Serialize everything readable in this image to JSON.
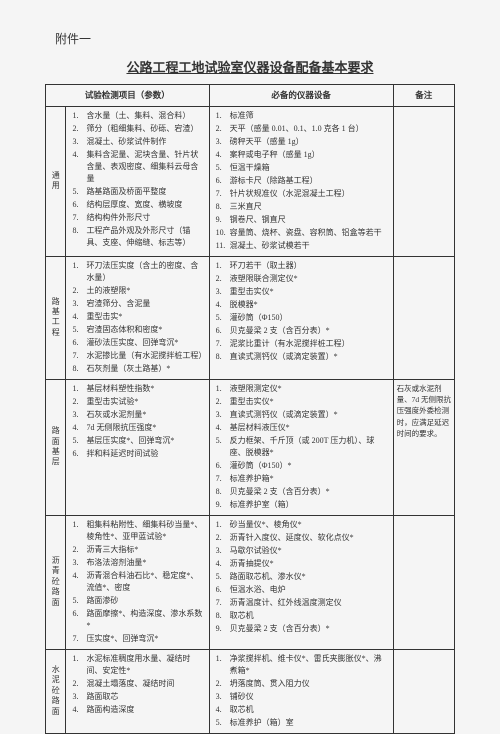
{
  "attachment": "附件一",
  "title": "公路工程工地试验室仪器设备配备基本要求",
  "headers": {
    "test": "试验检测项目（参数）",
    "equip": "必备的仪器设备",
    "note": "备注"
  },
  "sections": [
    {
      "cat": "通用",
      "tests": [
        "含水量（土、集料、混合料）",
        "筛分（粗细集料、砂砾、宕渣）",
        "混凝土、砂浆试件制作",
        "集料含泥量、泥块含量、针片状含量、表观密度、细集料云母含量",
        "路基路面及桥面平整度",
        "结构层厚度、宽度、横坡度",
        "结构构件外形尺寸",
        "工程产品外观及外形尺寸（锚具、支座、伸缩缝、标志等）"
      ],
      "equips": [
        "标准筛",
        "天平（感量 0.01、0.1、1.0 克各 1 台）",
        "磅秤天平（感量 1g）",
        "案秤或电子秤（感量 1g）",
        "恒温干燥箱",
        "游标卡尺（除路基工程）",
        "针片状规准仪（水泥混凝土工程）",
        "三米直尺",
        "钢卷尺、钢直尺",
        "容量筒、烧杯、瓷盘、容积筒、铝盒等若干",
        "混凝土、砂浆试模若干"
      ],
      "note": ""
    },
    {
      "cat": "路基工程",
      "tests": [
        "环刀法压实度（含土的密度、含水量）",
        "土的液塑限*",
        "宕渣筛分、含泥量",
        "重型击实*",
        "宕渣固态体积和密度*",
        "灌砂法压实度、回弹弯沉*",
        "水泥掺比量（有水泥搅拌桩工程）",
        "石灰剂量（灰土路基）*"
      ],
      "equips": [
        "环刀若干（取土器）",
        "液塑限联合测定仪*",
        "重型击实仪*",
        "脱模器*",
        "灌砂筒（Φ150）",
        "贝克曼梁 2 支（含百分表）*",
        "泥浆比重计（有水泥搅拌桩工程）",
        "直读式测钙仪（或滴定装置）*"
      ],
      "note": ""
    },
    {
      "cat": "路面基层",
      "tests": [
        "基层材料塑性指数*",
        "重型击实试验*",
        "石灰或水泥剂量*",
        "7d 无侧限抗压强度*",
        "基层压实度*、回弹弯沉*",
        "拌和料延迟时间试验"
      ],
      "equips": [
        "液塑限测定仪*",
        "重型击实仪*",
        "直读式测钙仪（或滴定装置）*",
        "基层材料液压仪*",
        "反力框架、千斤顶（或 200T 压力机）、球座、脱模器*",
        "灌砂筒（Φ150）*",
        "标准养护箱*",
        "贝克曼梁 2 支（含百分表）*",
        "标准养护室（箱）"
      ],
      "note": "石灰或水泥剂量、7d 无侧限抗压强度外委检测时，应满足延迟时间的要求。"
    },
    {
      "cat": "沥青砼路面",
      "tests": [
        "粗集料粘附性、细集料砂当量*、棱角性*、亚甲蓝试验*",
        "沥青三大指标*",
        "布洛法溶剂油量*",
        "沥青混合料油石比*、稳定度*、流值*、密度",
        "路面渗砂",
        "路面摩擦*、构造深度、渗水系数*",
        "压实度*、回弹弯沉*"
      ],
      "equips": [
        "砂当量仪*、棱角仪*",
        "沥青针入度仪、延度仪、软化点仪*",
        "马歇尔试验仪*",
        "沥青抽提仪*",
        "路面取芯机、渗水仪*",
        "恒温水浴、电炉",
        "沥青温度计、红外线温度测定仪",
        "取芯机",
        "贝克曼梁 2 支（含百分表）*"
      ],
      "note": ""
    },
    {
      "cat": "水泥砼路面",
      "tests": [
        "水泥标准稠度用水量、凝结时间、安定性*",
        "混凝土塌落度、凝结时间",
        "路面取芯",
        "路面构造深度"
      ],
      "equips": [
        "净浆搅拌机、维卡仪*、雷氏夹膨胀仪*、沸煮箱*",
        "坍落度筒、贯入阻力仪",
        "铺砂仪",
        "取芯机",
        "标准养护（箱）室"
      ],
      "note": ""
    }
  ]
}
